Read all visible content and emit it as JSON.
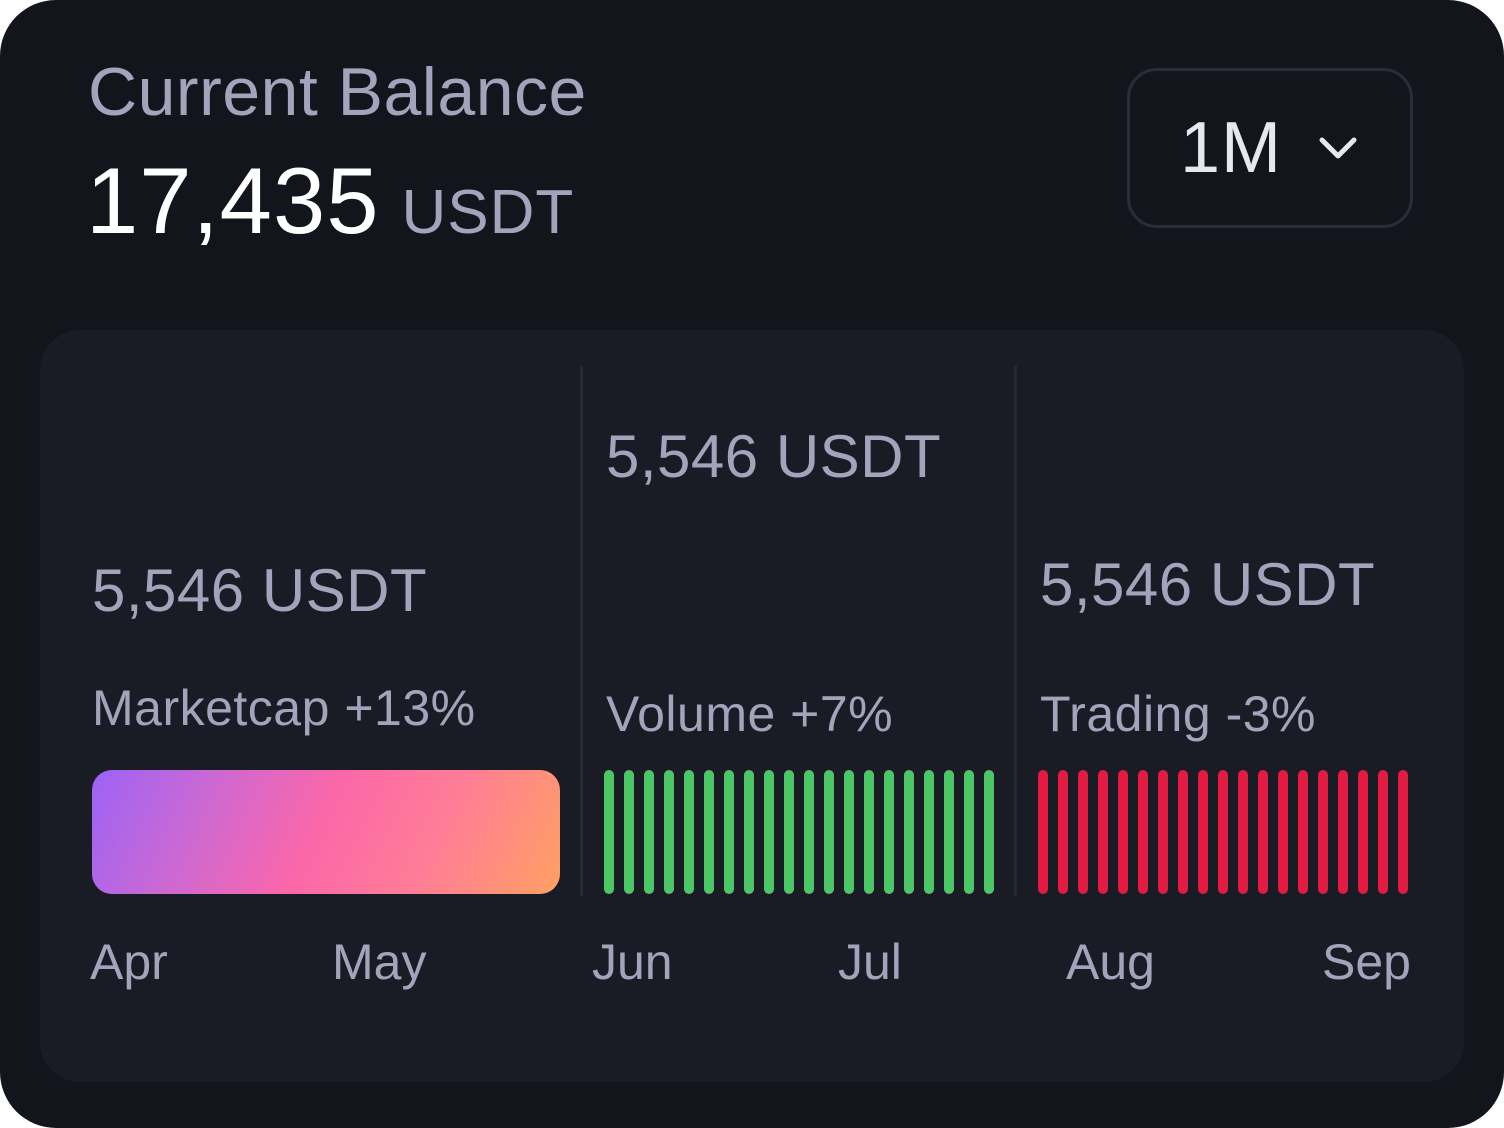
{
  "header": {
    "title": "Current Balance",
    "balance_amount": "17,435",
    "balance_unit": "USDT"
  },
  "period_select": {
    "value": "1M",
    "icon": "chevron-down-icon"
  },
  "stats": [
    {
      "value": "5,546 USDT",
      "label": "Marketcap +13%",
      "bar_style": "gradient",
      "gradient_colors": [
        "#9b63f6",
        "#fb67a9",
        "#ffa062"
      ],
      "months": [
        "Apr",
        "May"
      ]
    },
    {
      "value": "5,546 USDT",
      "label": "Volume +7%",
      "bar_style": "stripes",
      "color": "#4cc766",
      "stripe_count": 20,
      "months": [
        "Jun",
        "Jul"
      ]
    },
    {
      "value": "5,546 USDT",
      "label": "Trading -3%",
      "bar_style": "stripes",
      "color": "#e31b42",
      "stripe_count": 19,
      "months": [
        "Aug",
        "Sep"
      ]
    }
  ],
  "colors": {
    "card_background": "#13151d",
    "panel_background": "#1a1c25",
    "text_primary": "#ffffff",
    "text_secondary": "#a3a4bc"
  }
}
